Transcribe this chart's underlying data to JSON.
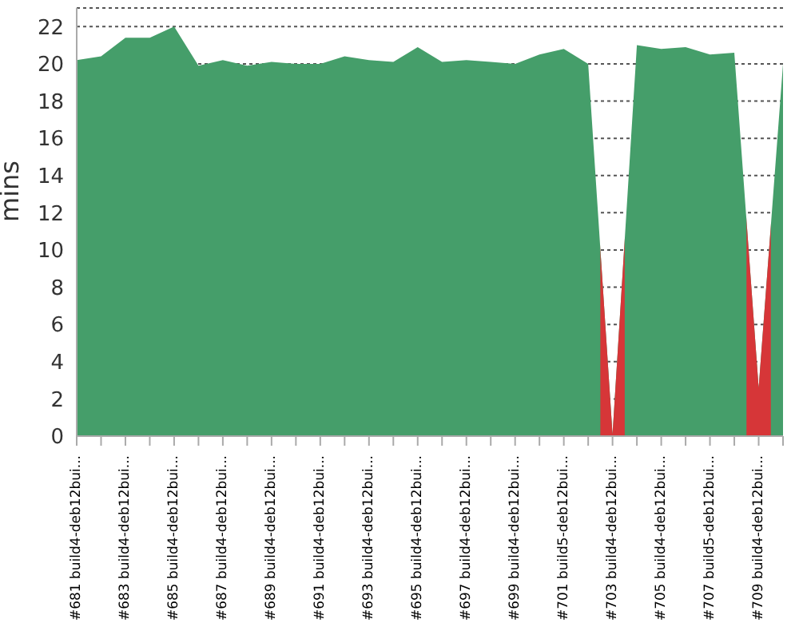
{
  "chart_data": {
    "type": "area",
    "ylabel": "mins",
    "categories": [
      "#681 build4-deb12bui...",
      null,
      "#683 build4-deb12bui...",
      null,
      "#685 build4-deb12bui...",
      null,
      "#687 build4-deb12bui...",
      null,
      "#689 build4-deb12bui...",
      null,
      "#691 build4-deb12bui...",
      null,
      "#693 build4-deb12bui...",
      null,
      "#695 build4-deb12bui...",
      null,
      "#697 build4-deb12bui...",
      null,
      "#699 build4-deb12bui...",
      null,
      "#701 build5-deb12bui...",
      null,
      "#703 build4-deb12bui...",
      null,
      "#705 build4-deb12bui...",
      null,
      "#707 build5-deb12bui...",
      null,
      "#709 build4-deb12bui...",
      null
    ],
    "values": [
      20.2,
      20.4,
      21.4,
      21.4,
      22.0,
      19.9,
      20.2,
      19.9,
      20.1,
      20.0,
      20.0,
      20.4,
      20.2,
      20.1,
      20.9,
      20.1,
      20.2,
      20.1,
      20.0,
      20.5,
      20.8,
      20.0,
      0.1,
      21.0,
      20.8,
      20.9,
      20.5,
      20.6,
      2.6,
      20.0
    ],
    "colors": [
      "#459e6a",
      "#459e6a",
      "#459e6a",
      "#459e6a",
      "#459e6a",
      "#459e6a",
      "#459e6a",
      "#459e6a",
      "#459e6a",
      "#459e6a",
      "#459e6a",
      "#459e6a",
      "#459e6a",
      "#459e6a",
      "#459e6a",
      "#459e6a",
      "#459e6a",
      "#459e6a",
      "#459e6a",
      "#459e6a",
      "#459e6a",
      "#459e6a",
      "#d63638",
      "#459e6a",
      "#459e6a",
      "#459e6a",
      "#459e6a",
      "#459e6a",
      "#d63638",
      "#459e6a"
    ],
    "ylim": [
      0,
      23
    ],
    "yticks": [
      0,
      2,
      4,
      6,
      8,
      10,
      12,
      14,
      16,
      18,
      20,
      22
    ],
    "grid": "y",
    "legend": false,
    "marker": "none"
  }
}
